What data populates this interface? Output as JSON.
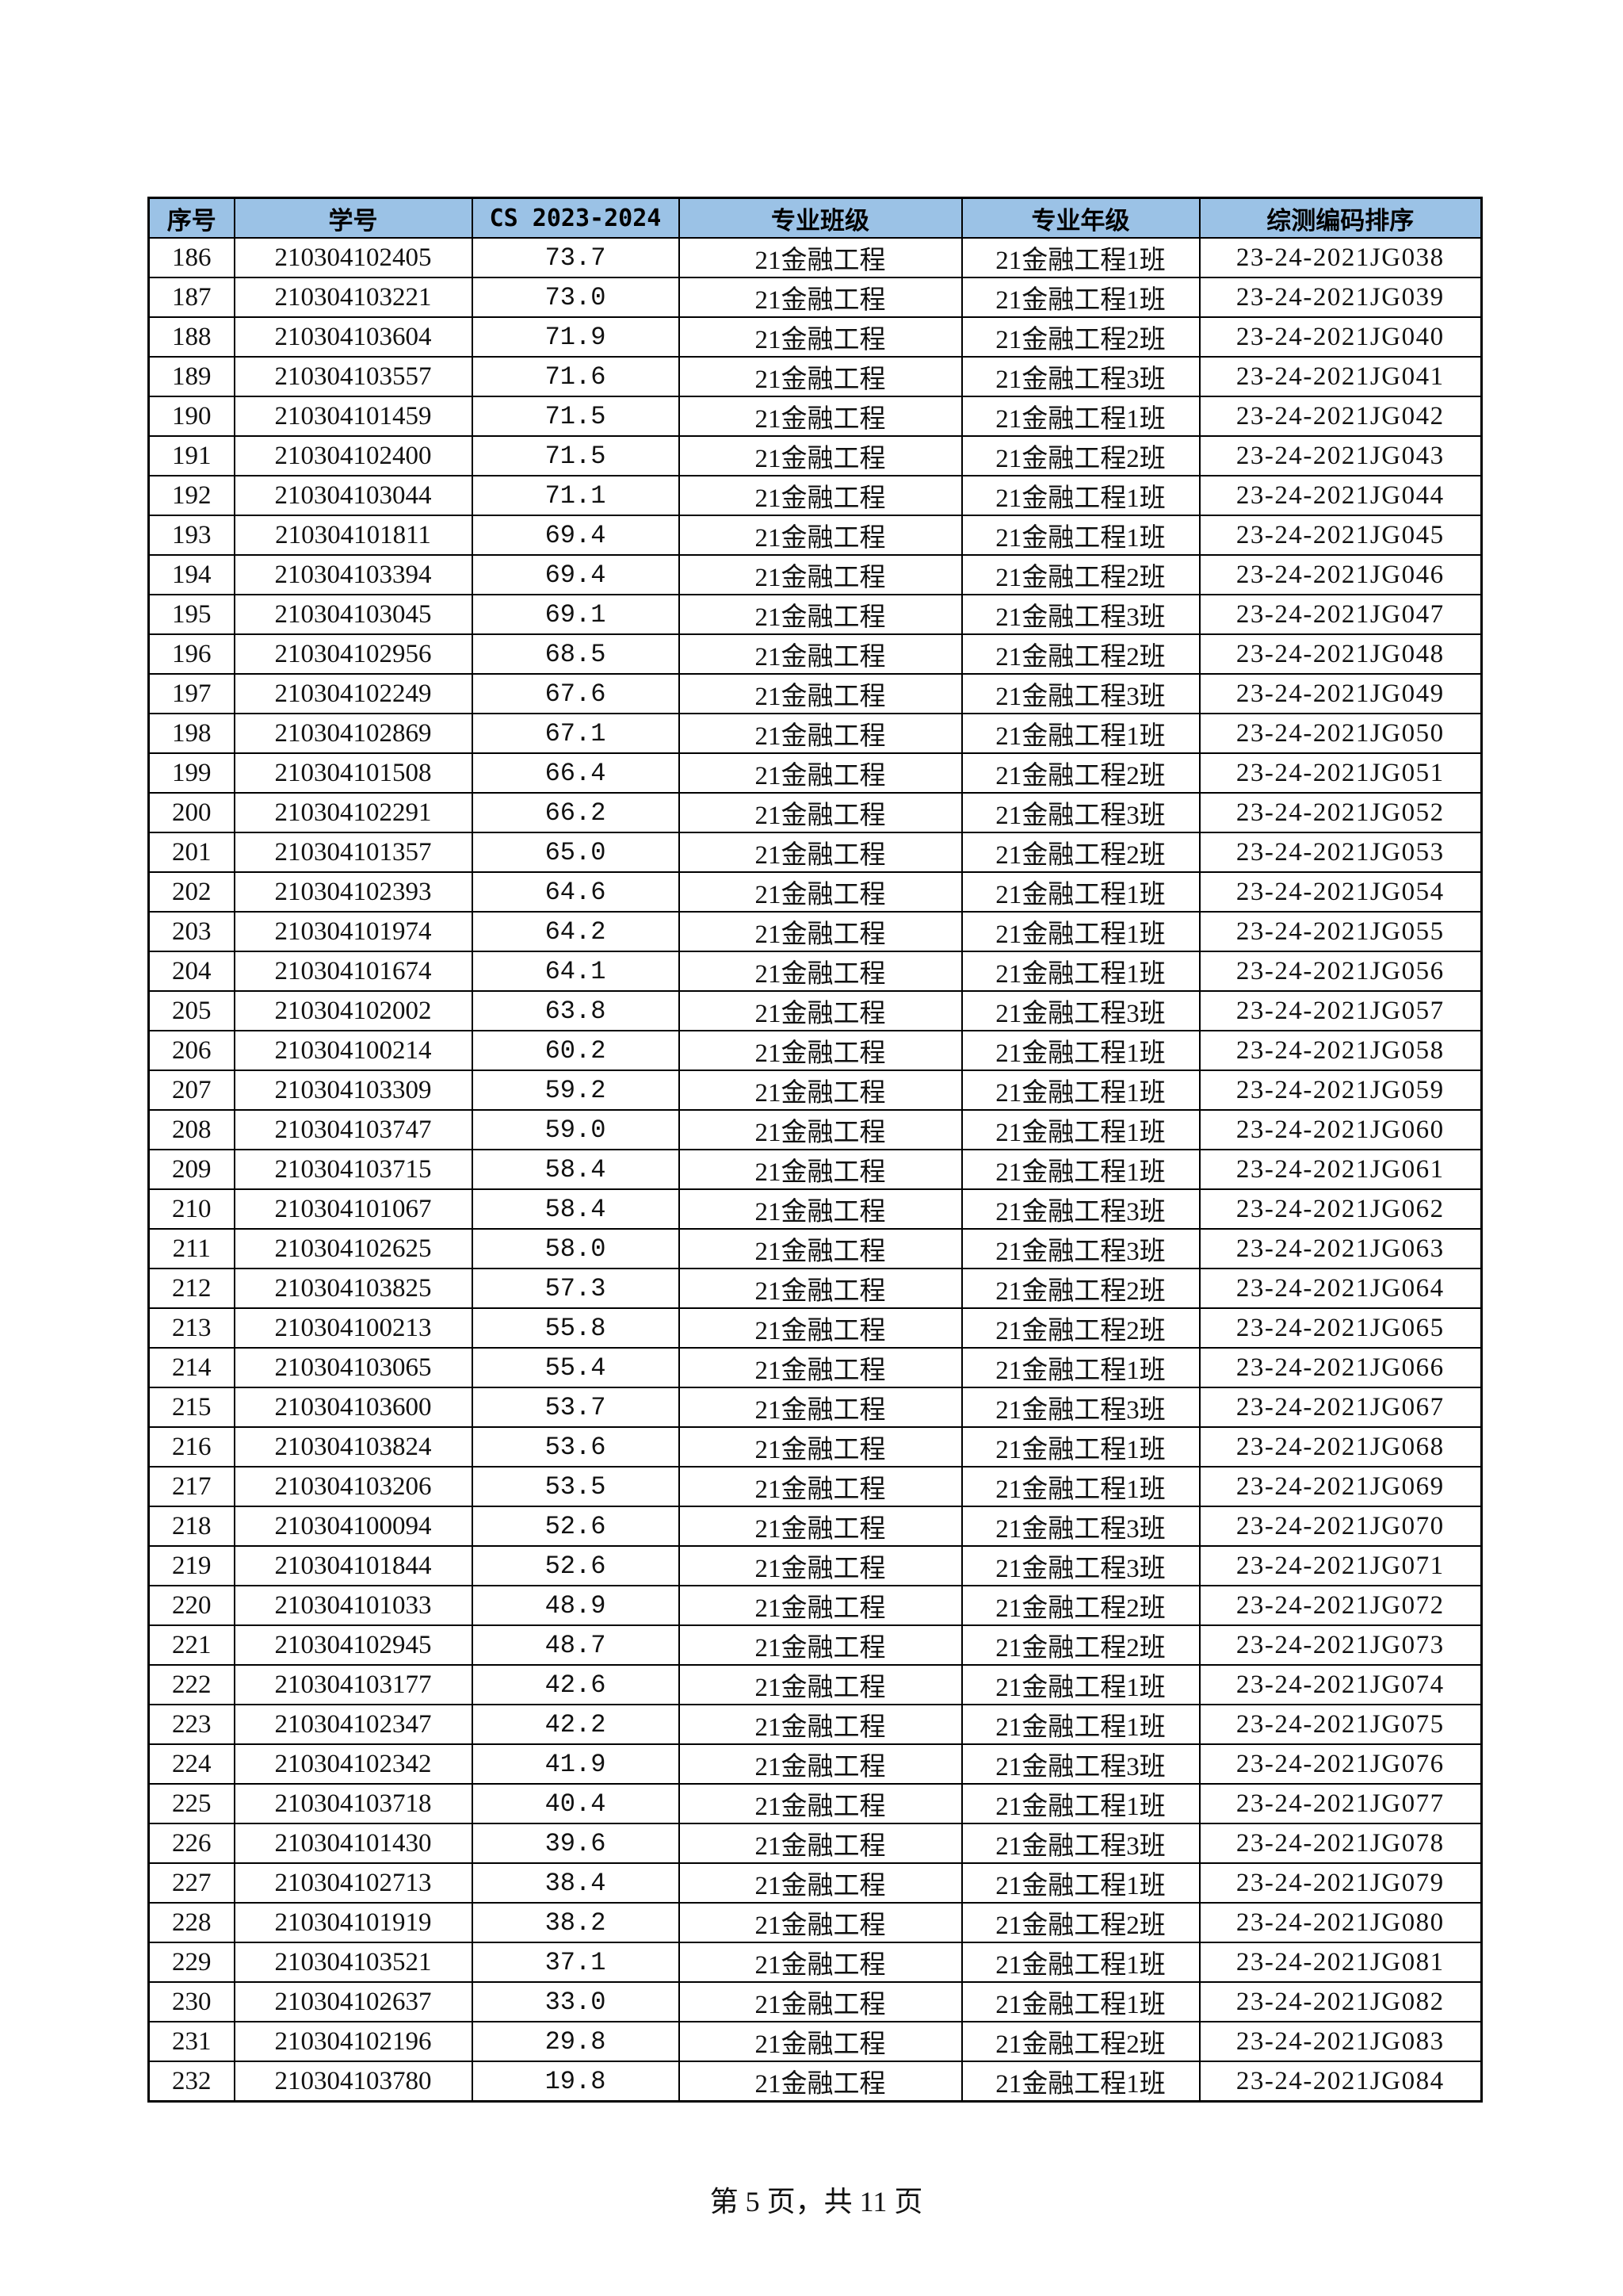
{
  "table": {
    "headers": [
      "序号",
      "学号",
      "CS 2023-2024",
      "专业班级",
      "专业年级",
      "综测编码排序"
    ],
    "header_color": "#9BC2E6",
    "rows": [
      [
        "186",
        "210304102405",
        "73.7",
        "21金融工程",
        "21金融工程1班",
        "23-24-2021JG038"
      ],
      [
        "187",
        "210304103221",
        "73.0",
        "21金融工程",
        "21金融工程1班",
        "23-24-2021JG039"
      ],
      [
        "188",
        "210304103604",
        "71.9",
        "21金融工程",
        "21金融工程2班",
        "23-24-2021JG040"
      ],
      [
        "189",
        "210304103557",
        "71.6",
        "21金融工程",
        "21金融工程3班",
        "23-24-2021JG041"
      ],
      [
        "190",
        "210304101459",
        "71.5",
        "21金融工程",
        "21金融工程1班",
        "23-24-2021JG042"
      ],
      [
        "191",
        "210304102400",
        "71.5",
        "21金融工程",
        "21金融工程2班",
        "23-24-2021JG043"
      ],
      [
        "192",
        "210304103044",
        "71.1",
        "21金融工程",
        "21金融工程1班",
        "23-24-2021JG044"
      ],
      [
        "193",
        "210304101811",
        "69.4",
        "21金融工程",
        "21金融工程1班",
        "23-24-2021JG045"
      ],
      [
        "194",
        "210304103394",
        "69.4",
        "21金融工程",
        "21金融工程2班",
        "23-24-2021JG046"
      ],
      [
        "195",
        "210304103045",
        "69.1",
        "21金融工程",
        "21金融工程3班",
        "23-24-2021JG047"
      ],
      [
        "196",
        "210304102956",
        "68.5",
        "21金融工程",
        "21金融工程2班",
        "23-24-2021JG048"
      ],
      [
        "197",
        "210304102249",
        "67.6",
        "21金融工程",
        "21金融工程3班",
        "23-24-2021JG049"
      ],
      [
        "198",
        "210304102869",
        "67.1",
        "21金融工程",
        "21金融工程1班",
        "23-24-2021JG050"
      ],
      [
        "199",
        "210304101508",
        "66.4",
        "21金融工程",
        "21金融工程2班",
        "23-24-2021JG051"
      ],
      [
        "200",
        "210304102291",
        "66.2",
        "21金融工程",
        "21金融工程3班",
        "23-24-2021JG052"
      ],
      [
        "201",
        "210304101357",
        "65.0",
        "21金融工程",
        "21金融工程2班",
        "23-24-2021JG053"
      ],
      [
        "202",
        "210304102393",
        "64.6",
        "21金融工程",
        "21金融工程1班",
        "23-24-2021JG054"
      ],
      [
        "203",
        "210304101974",
        "64.2",
        "21金融工程",
        "21金融工程1班",
        "23-24-2021JG055"
      ],
      [
        "204",
        "210304101674",
        "64.1",
        "21金融工程",
        "21金融工程1班",
        "23-24-2021JG056"
      ],
      [
        "205",
        "210304102002",
        "63.8",
        "21金融工程",
        "21金融工程3班",
        "23-24-2021JG057"
      ],
      [
        "206",
        "210304100214",
        "60.2",
        "21金融工程",
        "21金融工程1班",
        "23-24-2021JG058"
      ],
      [
        "207",
        "210304103309",
        "59.2",
        "21金融工程",
        "21金融工程1班",
        "23-24-2021JG059"
      ],
      [
        "208",
        "210304103747",
        "59.0",
        "21金融工程",
        "21金融工程1班",
        "23-24-2021JG060"
      ],
      [
        "209",
        "210304103715",
        "58.4",
        "21金融工程",
        "21金融工程1班",
        "23-24-2021JG061"
      ],
      [
        "210",
        "210304101067",
        "58.4",
        "21金融工程",
        "21金融工程3班",
        "23-24-2021JG062"
      ],
      [
        "211",
        "210304102625",
        "58.0",
        "21金融工程",
        "21金融工程3班",
        "23-24-2021JG063"
      ],
      [
        "212",
        "210304103825",
        "57.3",
        "21金融工程",
        "21金融工程2班",
        "23-24-2021JG064"
      ],
      [
        "213",
        "210304100213",
        "55.8",
        "21金融工程",
        "21金融工程2班",
        "23-24-2021JG065"
      ],
      [
        "214",
        "210304103065",
        "55.4",
        "21金融工程",
        "21金融工程1班",
        "23-24-2021JG066"
      ],
      [
        "215",
        "210304103600",
        "53.7",
        "21金融工程",
        "21金融工程3班",
        "23-24-2021JG067"
      ],
      [
        "216",
        "210304103824",
        "53.6",
        "21金融工程",
        "21金融工程1班",
        "23-24-2021JG068"
      ],
      [
        "217",
        "210304103206",
        "53.5",
        "21金融工程",
        "21金融工程1班",
        "23-24-2021JG069"
      ],
      [
        "218",
        "210304100094",
        "52.6",
        "21金融工程",
        "21金融工程3班",
        "23-24-2021JG070"
      ],
      [
        "219",
        "210304101844",
        "52.6",
        "21金融工程",
        "21金融工程3班",
        "23-24-2021JG071"
      ],
      [
        "220",
        "210304101033",
        "48.9",
        "21金融工程",
        "21金融工程2班",
        "23-24-2021JG072"
      ],
      [
        "221",
        "210304102945",
        "48.7",
        "21金融工程",
        "21金融工程2班",
        "23-24-2021JG073"
      ],
      [
        "222",
        "210304103177",
        "42.6",
        "21金融工程",
        "21金融工程1班",
        "23-24-2021JG074"
      ],
      [
        "223",
        "210304102347",
        "42.2",
        "21金融工程",
        "21金融工程1班",
        "23-24-2021JG075"
      ],
      [
        "224",
        "210304102342",
        "41.9",
        "21金融工程",
        "21金融工程3班",
        "23-24-2021JG076"
      ],
      [
        "225",
        "210304103718",
        "40.4",
        "21金融工程",
        "21金融工程1班",
        "23-24-2021JG077"
      ],
      [
        "226",
        "210304101430",
        "39.6",
        "21金融工程",
        "21金融工程3班",
        "23-24-2021JG078"
      ],
      [
        "227",
        "210304102713",
        "38.4",
        "21金融工程",
        "21金融工程1班",
        "23-24-2021JG079"
      ],
      [
        "228",
        "210304101919",
        "38.2",
        "21金融工程",
        "21金融工程2班",
        "23-24-2021JG080"
      ],
      [
        "229",
        "210304103521",
        "37.1",
        "21金融工程",
        "21金融工程1班",
        "23-24-2021JG081"
      ],
      [
        "230",
        "210304102637",
        "33.0",
        "21金融工程",
        "21金融工程1班",
        "23-24-2021JG082"
      ],
      [
        "231",
        "210304102196",
        "29.8",
        "21金融工程",
        "21金融工程2班",
        "23-24-2021JG083"
      ],
      [
        "232",
        "210304103780",
        "19.8",
        "21金融工程",
        "21金融工程1班",
        "23-24-2021JG084"
      ]
    ]
  },
  "footer": {
    "page_label": "第 5 页，共 11 页"
  }
}
